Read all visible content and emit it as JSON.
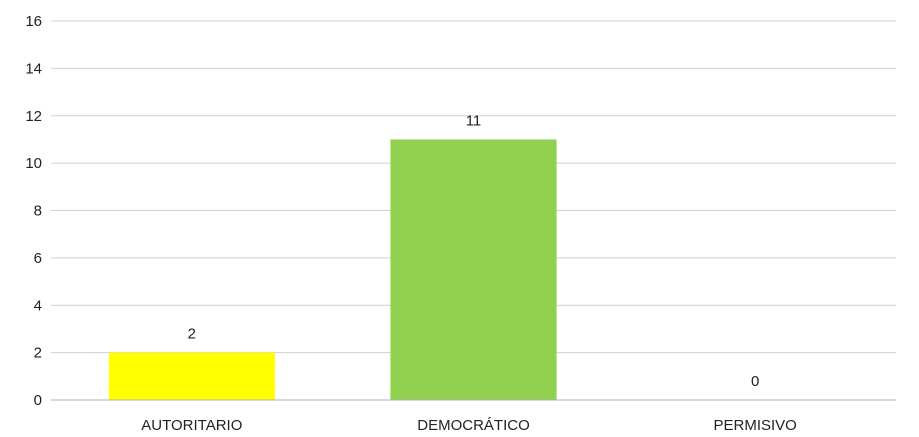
{
  "chart_data": {
    "type": "bar",
    "categories": [
      "AUTORITARIO",
      "DEMOCRÁTICO",
      "PERMISIVO"
    ],
    "values": [
      2,
      11,
      0
    ],
    "colors": [
      "#ffff00",
      "#92d050",
      "#92d050"
    ],
    "data_labels": [
      "2",
      "11",
      "0"
    ],
    "y_ticks": [
      "0",
      "2",
      "4",
      "6",
      "8",
      "10",
      "12",
      "14",
      "16"
    ],
    "ylim": [
      0,
      16
    ],
    "grid": true,
    "legend": "none"
  }
}
